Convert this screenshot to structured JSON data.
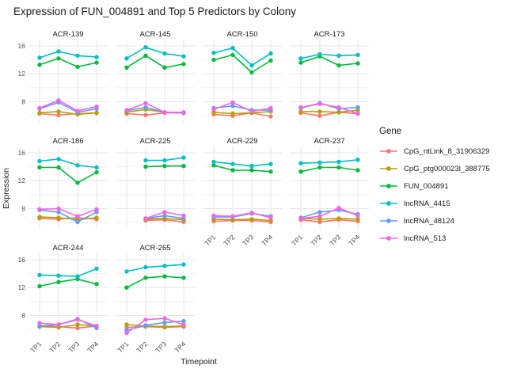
{
  "chart_data": {
    "type": "line",
    "title": "Expression of FUN_004891 and Top 5 Predictors by Colony",
    "xlabel": "Timepoint",
    "ylabel": "Expression",
    "x": [
      "TP1",
      "TP2",
      "TP3",
      "TP4"
    ],
    "yticks": [
      8,
      12,
      16
    ],
    "yticks_minor": [
      6,
      10,
      14
    ],
    "ylim": [
      5.0,
      16.9
    ],
    "grid": "major-and-minor-horizontal-plus-vertical-major",
    "legend_title": "Gene",
    "legend_position": "right",
    "facet_columns": 4,
    "genes": [
      {
        "name": "CpG_ntLink_8_31906329",
        "color": "#F8766D"
      },
      {
        "name": "CpG_ptg000023l_388775",
        "color": "#B79F00"
      },
      {
        "name": "FUN_004891",
        "color": "#00BA38"
      },
      {
        "name": "lncRNA_4415",
        "color": "#00BFC4"
      },
      {
        "name": "lncRNA_48124",
        "color": "#619CFF"
      },
      {
        "name": "lncRNA_513",
        "color": "#F564E3"
      }
    ],
    "facets": [
      {
        "name": "ACR-139",
        "values": [
          [
            6.3,
            6.1,
            6.3,
            6.4
          ],
          [
            6.4,
            6.6,
            6.2,
            6.4
          ],
          [
            13.3,
            14.2,
            13.0,
            13.6
          ],
          [
            14.3,
            15.2,
            14.6,
            14.4
          ],
          [
            7.0,
            7.9,
            6.5,
            7.0
          ],
          [
            7.1,
            8.2,
            6.7,
            7.3
          ]
        ]
      },
      {
        "name": "ACR-145",
        "values": [
          [
            6.3,
            6.1,
            6.4,
            6.4
          ],
          [
            6.5,
            6.9,
            6.5,
            6.4
          ],
          [
            12.9,
            14.6,
            12.9,
            13.4
          ],
          [
            14.2,
            15.8,
            14.9,
            14.5
          ],
          [
            6.7,
            7.2,
            6.5,
            6.4
          ],
          [
            6.8,
            7.8,
            6.5,
            6.5
          ]
        ]
      },
      {
        "name": "ACR-150",
        "values": [
          [
            6.2,
            6.0,
            6.4,
            5.9
          ],
          [
            6.5,
            6.3,
            6.4,
            6.6
          ],
          [
            14.0,
            14.7,
            12.2,
            13.9
          ],
          [
            15.0,
            15.7,
            13.2,
            14.9
          ],
          [
            7.1,
            7.4,
            6.8,
            6.8
          ],
          [
            6.9,
            7.9,
            6.6,
            7.1
          ]
        ]
      },
      {
        "name": "ACR-173",
        "values": [
          [
            6.4,
            6.0,
            6.5,
            6.3
          ],
          [
            6.6,
            6.6,
            6.5,
            6.8
          ],
          [
            13.6,
            14.5,
            13.2,
            13.5
          ],
          [
            14.2,
            14.8,
            14.6,
            14.7
          ],
          [
            7.1,
            7.8,
            7.0,
            7.2
          ],
          [
            7.2,
            7.7,
            7.2,
            6.3
          ]
        ]
      },
      {
        "name": "ACR-186",
        "values": [
          [
            6.6,
            6.5,
            6.7,
            6.5
          ],
          [
            6.8,
            6.7,
            6.4,
            6.7
          ],
          [
            13.9,
            13.9,
            11.7,
            13.2
          ],
          [
            14.8,
            15.1,
            14.2,
            13.9
          ],
          [
            7.8,
            7.5,
            6.1,
            7.5
          ],
          [
            7.9,
            8.0,
            6.9,
            7.9
          ]
        ]
      },
      {
        "name": "ACR-225",
        "values": [
          [
            null,
            6.3,
            6.4,
            6.1
          ],
          [
            null,
            6.5,
            6.6,
            6.4
          ],
          [
            null,
            14.0,
            14.1,
            14.1
          ],
          [
            null,
            14.9,
            14.9,
            15.3
          ],
          [
            null,
            6.6,
            7.0,
            6.6
          ],
          [
            null,
            6.6,
            7.5,
            7.0
          ]
        ]
      },
      {
        "name": "ACR-229",
        "values": [
          [
            6.2,
            6.3,
            6.3,
            6.1
          ],
          [
            6.5,
            6.4,
            6.5,
            6.3
          ],
          [
            14.2,
            13.5,
            13.5,
            13.3
          ],
          [
            14.7,
            14.4,
            14.1,
            14.4
          ],
          [
            6.8,
            6.8,
            7.3,
            6.9
          ],
          [
            7.0,
            6.9,
            7.4,
            6.7
          ]
        ]
      },
      {
        "name": "ACR-237",
        "values": [
          [
            6.4,
            6.1,
            6.4,
            6.2
          ],
          [
            6.6,
            6.5,
            6.6,
            6.5
          ],
          [
            13.3,
            13.9,
            13.9,
            13.5
          ],
          [
            14.5,
            14.6,
            14.7,
            15.0
          ],
          [
            6.7,
            7.5,
            7.8,
            7.2
          ],
          [
            6.6,
            6.9,
            8.1,
            7.0
          ]
        ]
      },
      {
        "name": "ACR-244",
        "values": [
          [
            6.5,
            6.4,
            6.2,
            6.5
          ],
          [
            6.4,
            6.3,
            6.7,
            6.5
          ],
          [
            12.2,
            12.8,
            13.2,
            12.5
          ],
          [
            13.8,
            13.7,
            13.6,
            14.7
          ],
          [
            6.5,
            6.7,
            7.5,
            6.2
          ],
          [
            6.9,
            6.7,
            7.4,
            6.5
          ]
        ]
      },
      {
        "name": "ACR-265",
        "values": [
          [
            6.3,
            6.4,
            6.3,
            6.4
          ],
          [
            6.7,
            6.5,
            6.4,
            6.5
          ],
          [
            12.0,
            13.4,
            13.6,
            13.4
          ],
          [
            14.3,
            14.9,
            15.1,
            15.3
          ],
          [
            5.9,
            6.6,
            7.0,
            7.2
          ],
          [
            5.5,
            7.4,
            7.6,
            6.7
          ]
        ]
      }
    ]
  }
}
